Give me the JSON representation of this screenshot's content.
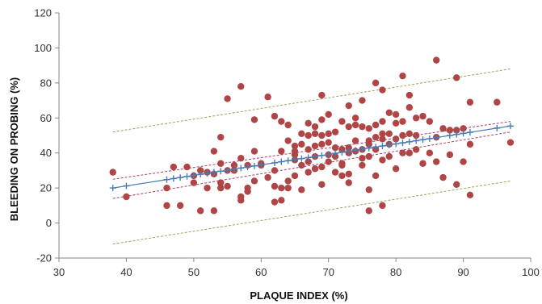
{
  "chart_data": {
    "type": "scatter",
    "title": "",
    "xlabel": "PLAQUE INDEX (%)",
    "ylabel": "BLEEDING ON PROBING (%)",
    "xlim": [
      30,
      100
    ],
    "ylim": [
      -20,
      120
    ],
    "x_ticks": [
      "30",
      "40",
      "50",
      "60",
      "70",
      "80",
      "90",
      "100"
    ],
    "y_ticks": [
      "-20",
      "0",
      "20",
      "40",
      "60",
      "80",
      "100",
      "120"
    ],
    "grid": false,
    "legend": "none",
    "colors": {
      "points": "#b04545",
      "fit_line": "#4a7ab5",
      "confidence_band": "#b03a6e",
      "prediction_band": "#9aa55a",
      "axis": "#888888"
    },
    "series": [
      {
        "kind": "points",
        "x": [
          38,
          40,
          46,
          46,
          47,
          48,
          49,
          50,
          50,
          51,
          51,
          52,
          52,
          53,
          53,
          53,
          54,
          54,
          54,
          54,
          55,
          55,
          55,
          56,
          56,
          57,
          57,
          57,
          57,
          58,
          58,
          58,
          59,
          59,
          59,
          60,
          60,
          61,
          61,
          62,
          62,
          62,
          62,
          63,
          63,
          63,
          63,
          64,
          64,
          64,
          64,
          65,
          65,
          65,
          65,
          65,
          66,
          66,
          66,
          66,
          67,
          67,
          67,
          67,
          67,
          68,
          68,
          68,
          68,
          68,
          69,
          69,
          69,
          69,
          69,
          69,
          70,
          70,
          70,
          70,
          70,
          71,
          71,
          71,
          71,
          72,
          72,
          72,
          72,
          72,
          73,
          73,
          73,
          73,
          73,
          73,
          74,
          74,
          74,
          74,
          75,
          75,
          75,
          75,
          75,
          76,
          76,
          76,
          76,
          76,
          76,
          77,
          77,
          77,
          77,
          77,
          78,
          78,
          78,
          78,
          78,
          78,
          79,
          79,
          79,
          79,
          80,
          80,
          80,
          80,
          81,
          81,
          81,
          81,
          82,
          82,
          82,
          82,
          83,
          83,
          83,
          84,
          84,
          85,
          85,
          86,
          86,
          86,
          87,
          87,
          88,
          88,
          89,
          89,
          89,
          90,
          90,
          91,
          91,
          91,
          95,
          97
        ],
        "y": [
          29,
          15,
          20,
          10,
          32,
          10,
          32,
          27,
          23,
          30,
          7,
          20,
          29,
          41,
          28,
          7,
          49,
          34,
          23,
          20,
          71,
          21,
          30,
          33,
          30,
          78,
          15,
          13,
          37,
          20,
          18,
          33,
          59,
          41,
          24,
          34,
          33,
          72,
          26,
          61,
          12,
          21,
          30,
          41,
          58,
          13,
          20,
          56,
          47,
          24,
          20,
          44,
          39,
          36,
          27,
          41,
          51,
          45,
          19,
          33,
          57,
          50,
          42,
          35,
          29,
          51,
          31,
          55,
          44,
          38,
          73,
          59,
          50,
          45,
          32,
          22,
          62,
          51,
          46,
          39,
          35,
          52,
          43,
          29,
          38,
          58,
          42,
          34,
          33,
          27,
          55,
          67,
          43,
          40,
          28,
          23,
          60,
          56,
          47,
          41,
          70,
          55,
          42,
          37,
          33,
          54,
          47,
          45,
          38,
          19,
          7,
          80,
          56,
          49,
          42,
          27,
          76,
          58,
          48,
          51,
          36,
          10,
          63,
          51,
          45,
          38,
          57,
          62,
          48,
          31,
          84,
          58,
          50,
          40,
          73,
          66,
          51,
          40,
          60,
          50,
          42,
          61,
          34,
          58,
          40,
          93,
          49,
          35,
          54,
          26,
          39,
          53,
          83,
          53,
          22,
          54,
          35,
          69,
          45,
          16,
          69,
          46
        ]
      },
      {
        "kind": "fitted",
        "x": [
          38,
          40,
          46,
          47,
          48,
          49,
          50,
          51,
          52,
          53,
          54,
          55,
          56,
          57,
          58,
          59,
          60,
          62,
          63,
          64,
          65,
          66,
          67,
          68,
          69,
          70,
          71,
          72,
          73,
          74,
          75,
          76,
          77,
          78,
          79,
          80,
          81,
          82,
          83,
          84,
          85,
          86,
          88,
          89,
          90,
          91,
          95,
          97
        ],
        "y": [
          20,
          21.2,
          24.8,
          25.4,
          26,
          26.6,
          27.2,
          27.8,
          28.4,
          29,
          29.6,
          30.2,
          30.8,
          31.4,
          32,
          32.6,
          33.2,
          34.4,
          35,
          35.6,
          36.2,
          36.8,
          37.4,
          38,
          38.6,
          39.2,
          39.8,
          40.4,
          41,
          41.6,
          42.2,
          42.8,
          43.4,
          44,
          44.6,
          45.2,
          45.8,
          46.4,
          47,
          47.6,
          48.2,
          48.8,
          50,
          50.6,
          51.2,
          51.8,
          54.2,
          55.4
        ]
      },
      {
        "kind": "confidence_band",
        "x": [
          38,
          97
        ],
        "upper": [
          25,
          58
        ],
        "lower": [
          14,
          52
        ]
      },
      {
        "kind": "prediction_band",
        "x": [
          38,
          97
        ],
        "upper": [
          52,
          88
        ],
        "lower": [
          -12,
          24
        ]
      }
    ]
  }
}
